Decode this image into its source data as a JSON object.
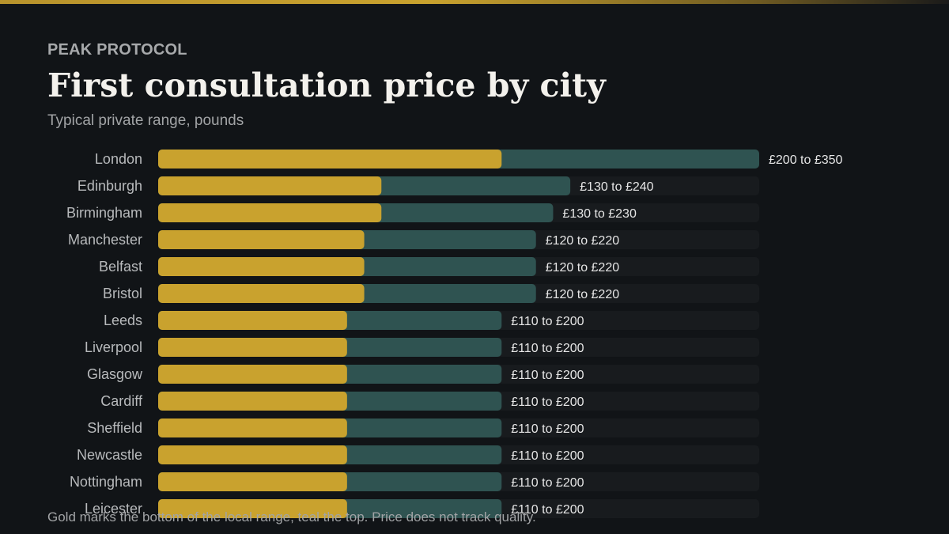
{
  "header": {
    "brand": "PEAK PROTOCOL",
    "title": "First consultation price by city",
    "subtitle": "Typical private range, pounds"
  },
  "footer": {
    "note": "Gold marks the bottom of the local range, teal the top. Price does not track quality."
  },
  "colors": {
    "background": "#111417",
    "low_bar": "#c9a22e",
    "high_bar": "#2f5351",
    "track": "#181b1e",
    "city_label": "#b8babc",
    "value_label": "#e6e6e6"
  },
  "chart_data": {
    "type": "bar",
    "orientation": "horizontal",
    "xlim": [
      0,
      350
    ],
    "grid": false,
    "categories": [
      "London",
      "Edinburgh",
      "Birmingham",
      "Manchester",
      "Belfast",
      "Bristol",
      "Leeds",
      "Liverpool",
      "Glasgow",
      "Cardiff",
      "Sheffield",
      "Newcastle",
      "Nottingham",
      "Leicester"
    ],
    "series": [
      {
        "values": [
          200,
          130,
          130,
          120,
          120,
          120,
          110,
          110,
          110,
          110,
          110,
          110,
          110,
          110
        ]
      },
      {
        "values": [
          350,
          240,
          230,
          220,
          220,
          220,
          200,
          200,
          200,
          200,
          200,
          200,
          200,
          200
        ]
      }
    ],
    "labels": [
      "£200 to £350",
      "£130 to £240",
      "£130 to £230",
      "£120 to £220",
      "£120 to £220",
      "£120 to £220",
      "£110 to £200",
      "£110 to £200",
      "£110 to £200",
      "£110 to £200",
      "£110 to £200",
      "£110 to £200",
      "£110 to £200",
      "£110 to £200"
    ]
  }
}
